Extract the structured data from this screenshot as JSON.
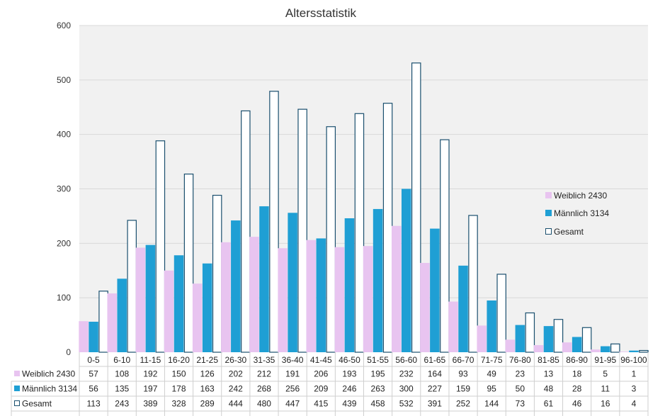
{
  "chart_data": {
    "type": "bar",
    "title": "Altersstatistik",
    "xlabel": "",
    "ylabel": "",
    "ylim": [
      0,
      600
    ],
    "yticks": [
      0,
      100,
      200,
      300,
      400,
      500,
      600
    ],
    "grid": true,
    "legend_position": "right",
    "categories": [
      "0-5",
      "6-10",
      "11-15",
      "16-20",
      "21-25",
      "26-30",
      "31-35",
      "36-40",
      "41-45",
      "46-50",
      "51-55",
      "56-60",
      "61-65",
      "66-70",
      "71-75",
      "76-80",
      "81-85",
      "86-90",
      "91-95",
      "96-100"
    ],
    "series": [
      {
        "name": "Weiblich 2430",
        "color": "#e8c4f0",
        "style": "filled",
        "values": [
          57,
          108,
          192,
          150,
          126,
          202,
          212,
          191,
          206,
          193,
          195,
          232,
          164,
          93,
          49,
          23,
          13,
          18,
          5,
          1
        ]
      },
      {
        "name": "Männlich 3134",
        "color": "#1f9fd4",
        "style": "filled",
        "values": [
          56,
          135,
          197,
          178,
          163,
          242,
          268,
          256,
          209,
          246,
          263,
          300,
          227,
          159,
          95,
          50,
          48,
          28,
          11,
          3
        ]
      },
      {
        "name": "Gesamt",
        "color": "#1a4f6e",
        "style": "outline",
        "values": [
          113,
          243,
          389,
          328,
          289,
          444,
          480,
          447,
          415,
          439,
          458,
          532,
          391,
          252,
          144,
          73,
          61,
          46,
          16,
          4
        ]
      }
    ]
  }
}
